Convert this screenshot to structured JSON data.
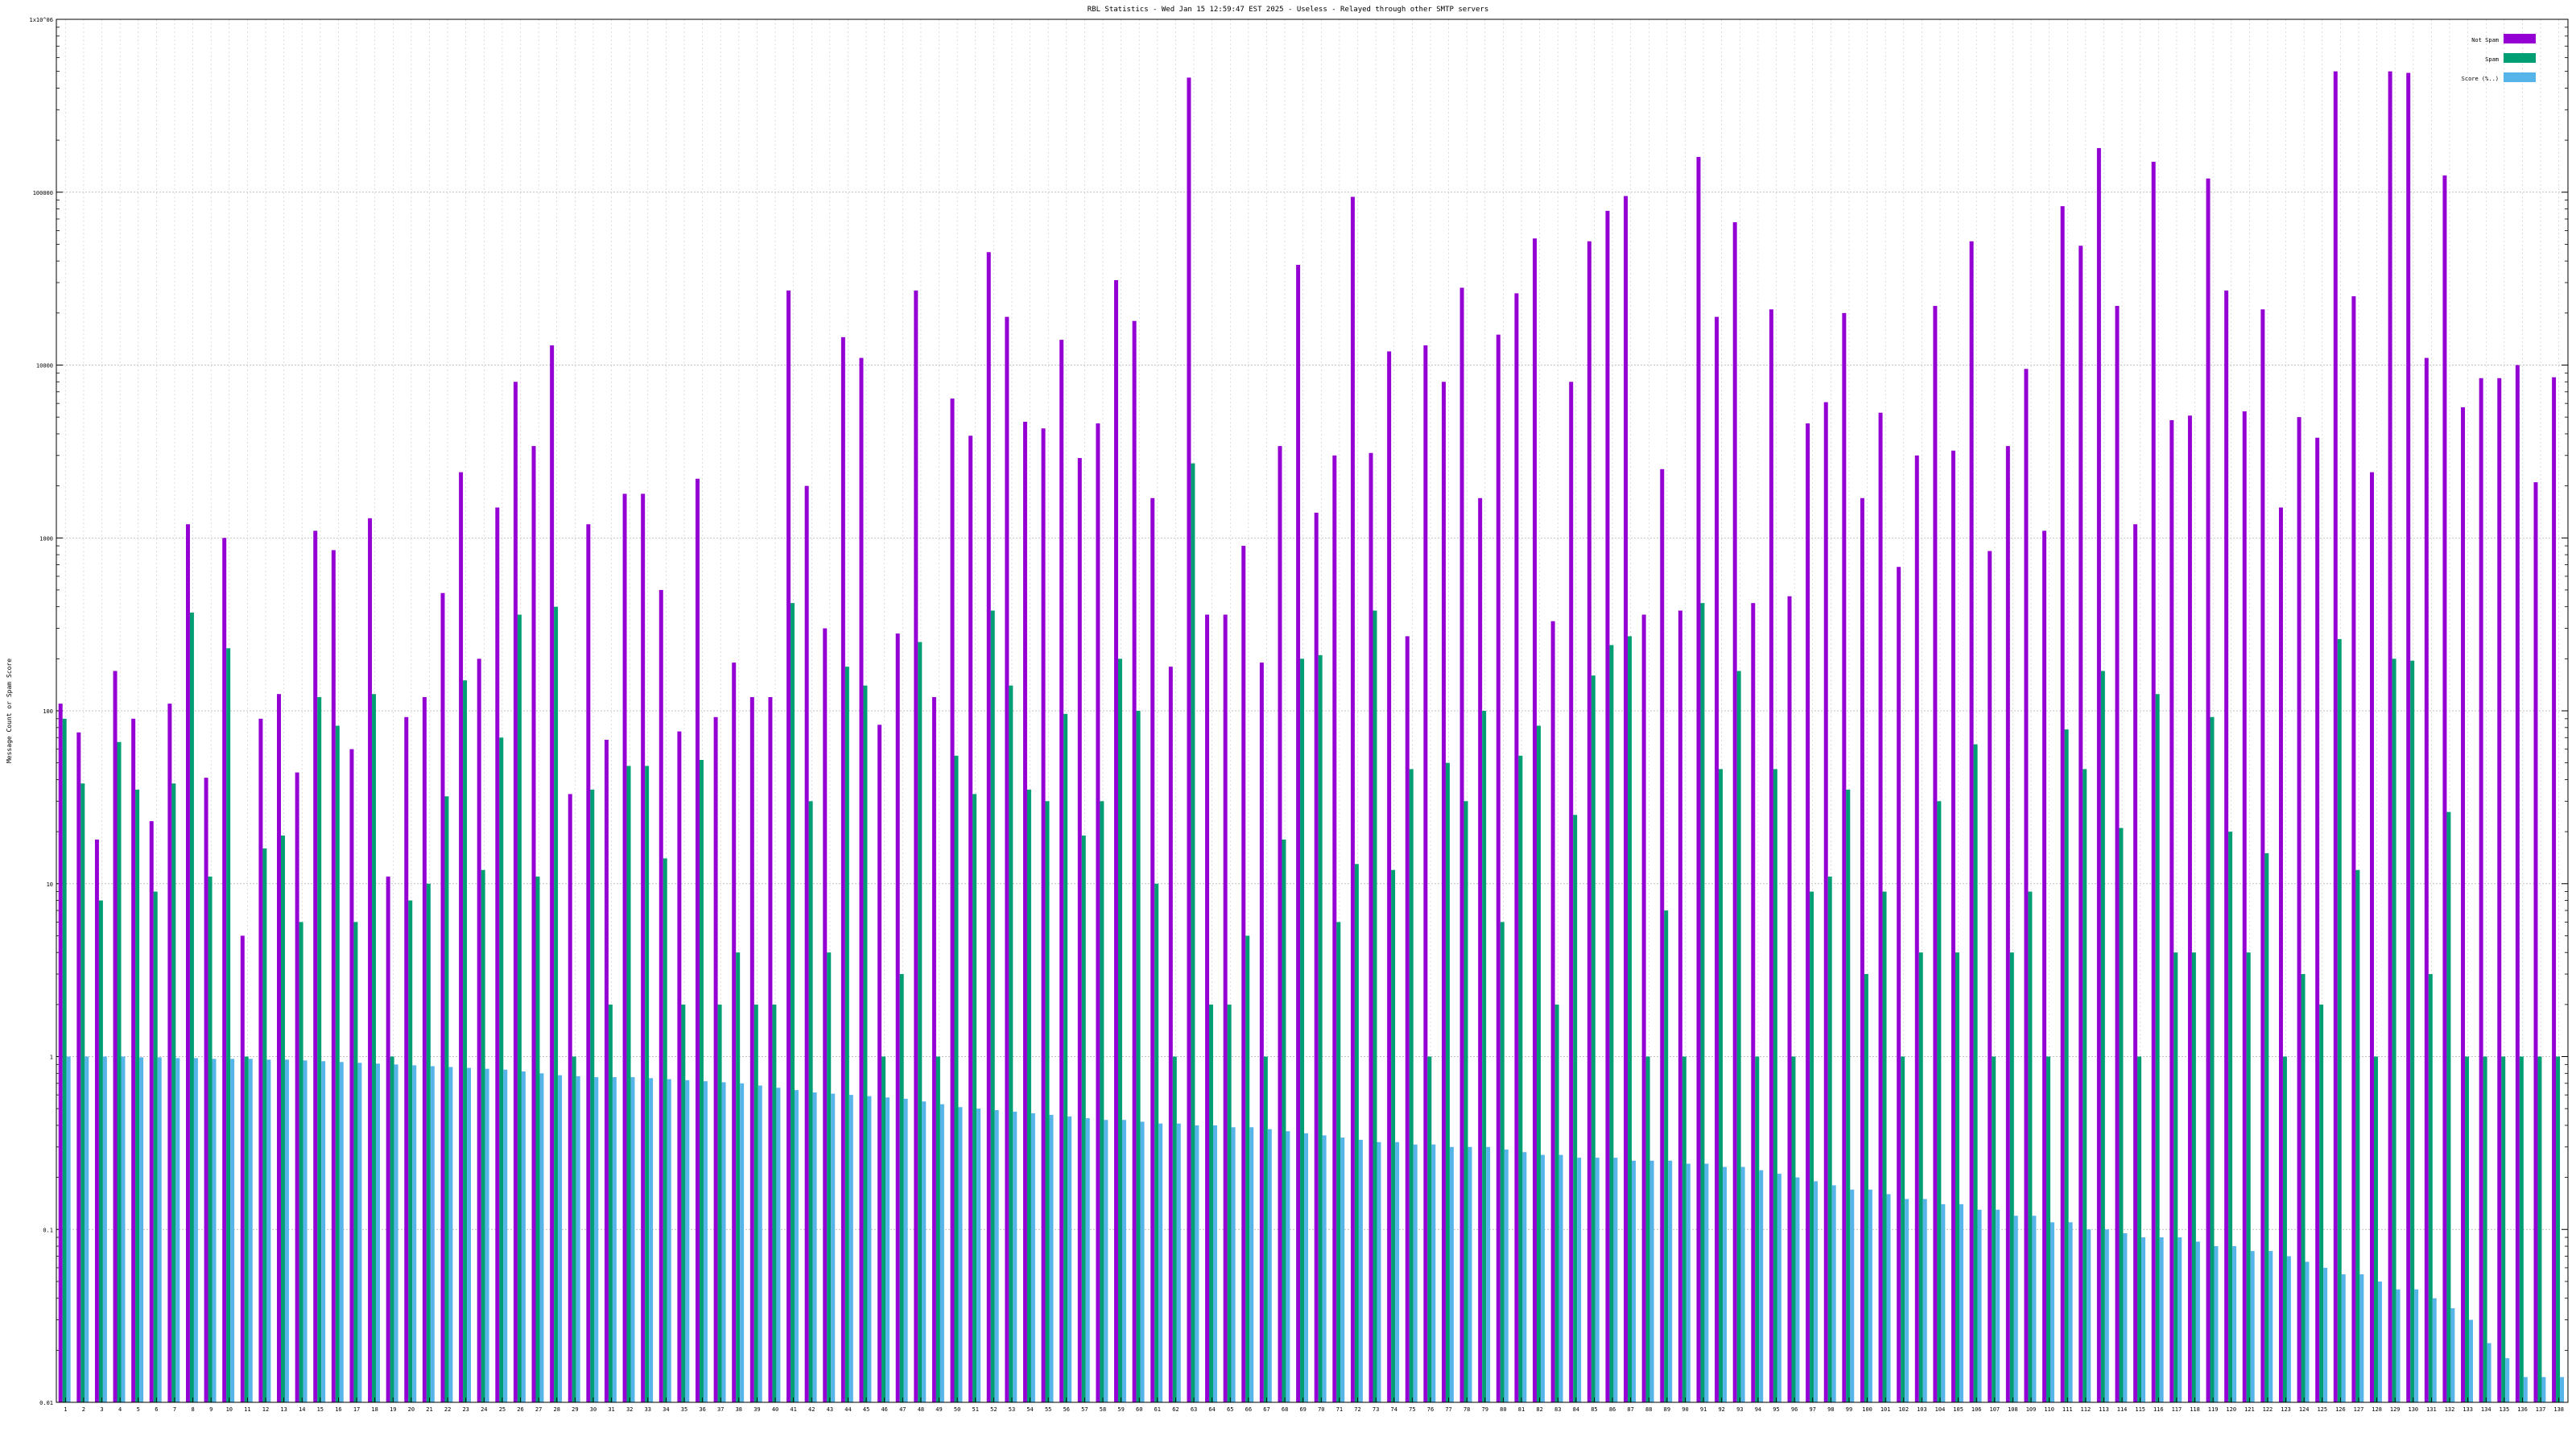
{
  "chart_data": {
    "type": "bar",
    "title": "RBL Statistics - Wed Jan 15 12:59:47 EST 2025 - Useless - Relayed through other SMTP servers",
    "xlabel": "",
    "ylabel": "Message Count or Spam Score",
    "y_scale": "log",
    "ylim": [
      0.01,
      1000000
    ],
    "y_ticks": [
      {
        "value": 0.01,
        "label": "0.01"
      },
      {
        "value": 0.1,
        "label": "0.1"
      },
      {
        "value": 1,
        "label": "1"
      },
      {
        "value": 10,
        "label": "10"
      },
      {
        "value": 100,
        "label": "100"
      },
      {
        "value": 1000,
        "label": "1000"
      },
      {
        "value": 10000,
        "label": "10000"
      },
      {
        "value": 100000,
        "label": "100000"
      },
      {
        "value": 1000000,
        "label": "1x10^06"
      }
    ],
    "grid": true,
    "legend_position": "top-right",
    "category_labels_note": "x-axis tick labels are too small to read; each category is labelled with a number followed by partial list names and a time window (e.g. '2 hours')",
    "categories": [
      "1",
      "2",
      "3",
      "4",
      "5",
      "6",
      "7",
      "8",
      "9",
      "10",
      "11",
      "12",
      "13",
      "14",
      "15",
      "16",
      "17",
      "18",
      "19",
      "20",
      "21",
      "22",
      "23",
      "24",
      "25",
      "26",
      "27",
      "28",
      "29",
      "30",
      "31",
      "32",
      "33",
      "34",
      "35",
      "36",
      "37",
      "38",
      "39",
      "40",
      "41",
      "42",
      "43",
      "44",
      "45",
      "46",
      "47",
      "48",
      "49",
      "50",
      "51",
      "52",
      "53",
      "54",
      "55",
      "56",
      "57",
      "58",
      "59",
      "60",
      "61",
      "62",
      "63",
      "64",
      "65",
      "66",
      "67",
      "68",
      "69",
      "70",
      "71",
      "72",
      "73",
      "74",
      "75",
      "76",
      "77",
      "78",
      "79",
      "80",
      "81",
      "82",
      "83",
      "84",
      "85",
      "86",
      "87",
      "88",
      "89",
      "90",
      "91",
      "92",
      "93",
      "94",
      "95",
      "96",
      "97",
      "98",
      "99",
      "100",
      "101",
      "102",
      "103",
      "104",
      "105",
      "106",
      "107",
      "108",
      "109",
      "110",
      "111",
      "112",
      "113",
      "114",
      "115",
      "116",
      "117",
      "118",
      "119",
      "120",
      "121",
      "122",
      "123",
      "124",
      "125",
      "126",
      "127",
      "128",
      "129",
      "130",
      "131",
      "132",
      "133",
      "134",
      "135",
      "136",
      "137",
      "138"
    ],
    "series": [
      {
        "name": "Not Spam",
        "color": "#9400d3",
        "values": [
          110,
          75,
          18,
          170,
          90,
          23,
          110,
          1200,
          41,
          1000,
          5,
          90,
          125,
          44,
          1100,
          850,
          60,
          1300,
          11,
          92,
          120,
          480,
          2400,
          200,
          1500,
          8000,
          3400,
          13000,
          33,
          1200,
          68,
          1800,
          1800,
          500,
          76,
          2200,
          92,
          190,
          120,
          120,
          27000,
          2000,
          300,
          14500,
          11000,
          83,
          280,
          27000,
          120,
          6400,
          3900,
          45000,
          19000,
          4700,
          4300,
          14000,
          2900,
          4600,
          31000,
          18000,
          1700,
          180,
          460000,
          360,
          360,
          900,
          190,
          3400,
          38000,
          1400,
          3000,
          94000,
          3100,
          12000,
          270,
          13000,
          8000,
          28000,
          1700,
          15000,
          26000,
          54000,
          330,
          8000,
          52000,
          78000,
          95000,
          360,
          2500,
          380,
          160000,
          19000,
          67000,
          420,
          21000,
          460,
          4600,
          6100,
          20000,
          1700,
          5300,
          680,
          3000,
          22000,
          3200,
          52000,
          840,
          3400,
          9500,
          1100,
          83000,
          49000,
          180000,
          22000,
          1200,
          150000,
          4800,
          5100,
          120000,
          27000,
          5400,
          21000,
          1500,
          5000,
          3800,
          500000,
          25000,
          2400,
          500000,
          490000,
          11000,
          125000,
          5700,
          8400,
          8400,
          10000,
          2100,
          8500
        ]
      },
      {
        "name": "Spam",
        "color": "#009e73",
        "values": [
          90,
          38,
          8,
          66,
          35,
          9,
          38,
          370,
          11,
          230,
          1,
          16,
          19,
          6,
          120,
          82,
          6,
          125,
          1,
          8,
          10,
          32,
          150,
          12,
          70,
          360,
          11,
          400,
          1,
          35,
          2,
          48,
          48,
          14,
          2,
          52,
          2,
          4,
          2,
          2,
          420,
          30,
          4,
          180,
          140,
          1,
          3,
          250,
          1,
          55,
          33,
          380,
          140,
          35,
          30,
          96,
          19,
          30,
          200,
          100,
          10,
          1,
          2700,
          2,
          2,
          5,
          1,
          18,
          200,
          210,
          6,
          13,
          380,
          12,
          46,
          1,
          50,
          30,
          100,
          6,
          55,
          82,
          2,
          25,
          160,
          240,
          270,
          1,
          7,
          1,
          420,
          46,
          170,
          1,
          46,
          1,
          9,
          11,
          35,
          3,
          9,
          1,
          4,
          30,
          4,
          64,
          1,
          4,
          9,
          1,
          78,
          46,
          170,
          21,
          1,
          125,
          4,
          4,
          92,
          20,
          4,
          15,
          1,
          3,
          2,
          260,
          12,
          1,
          200,
          195,
          3,
          26,
          1,
          1,
          1,
          1,
          1,
          1
        ]
      },
      {
        "name": "Score (%..)",
        "color": "#56b4e9",
        "values": [
          1.0,
          1.0,
          1.0,
          1.0,
          0.99,
          0.99,
          0.98,
          0.98,
          0.97,
          0.97,
          0.97,
          0.96,
          0.96,
          0.95,
          0.94,
          0.93,
          0.92,
          0.91,
          0.9,
          0.89,
          0.88,
          0.87,
          0.86,
          0.85,
          0.84,
          0.82,
          0.8,
          0.78,
          0.77,
          0.76,
          0.76,
          0.76,
          0.75,
          0.74,
          0.73,
          0.72,
          0.71,
          0.7,
          0.68,
          0.66,
          0.64,
          0.62,
          0.61,
          0.6,
          0.59,
          0.58,
          0.57,
          0.55,
          0.53,
          0.51,
          0.5,
          0.49,
          0.48,
          0.47,
          0.46,
          0.45,
          0.44,
          0.43,
          0.43,
          0.42,
          0.41,
          0.41,
          0.4,
          0.4,
          0.39,
          0.39,
          0.38,
          0.37,
          0.36,
          0.35,
          0.34,
          0.33,
          0.32,
          0.32,
          0.31,
          0.31,
          0.3,
          0.3,
          0.3,
          0.29,
          0.28,
          0.27,
          0.27,
          0.26,
          0.26,
          0.26,
          0.25,
          0.25,
          0.25,
          0.24,
          0.24,
          0.23,
          0.23,
          0.22,
          0.21,
          0.2,
          0.19,
          0.18,
          0.17,
          0.17,
          0.16,
          0.15,
          0.15,
          0.14,
          0.14,
          0.13,
          0.13,
          0.12,
          0.12,
          0.11,
          0.11,
          0.1,
          0.1,
          0.095,
          0.09,
          0.09,
          0.09,
          0.085,
          0.08,
          0.08,
          0.075,
          0.075,
          0.07,
          0.065,
          0.06,
          0.055,
          0.055,
          0.05,
          0.045,
          0.045,
          0.04,
          0.035,
          0.03,
          0.022,
          0.018,
          0.014,
          0.014,
          0.014
        ]
      }
    ]
  }
}
